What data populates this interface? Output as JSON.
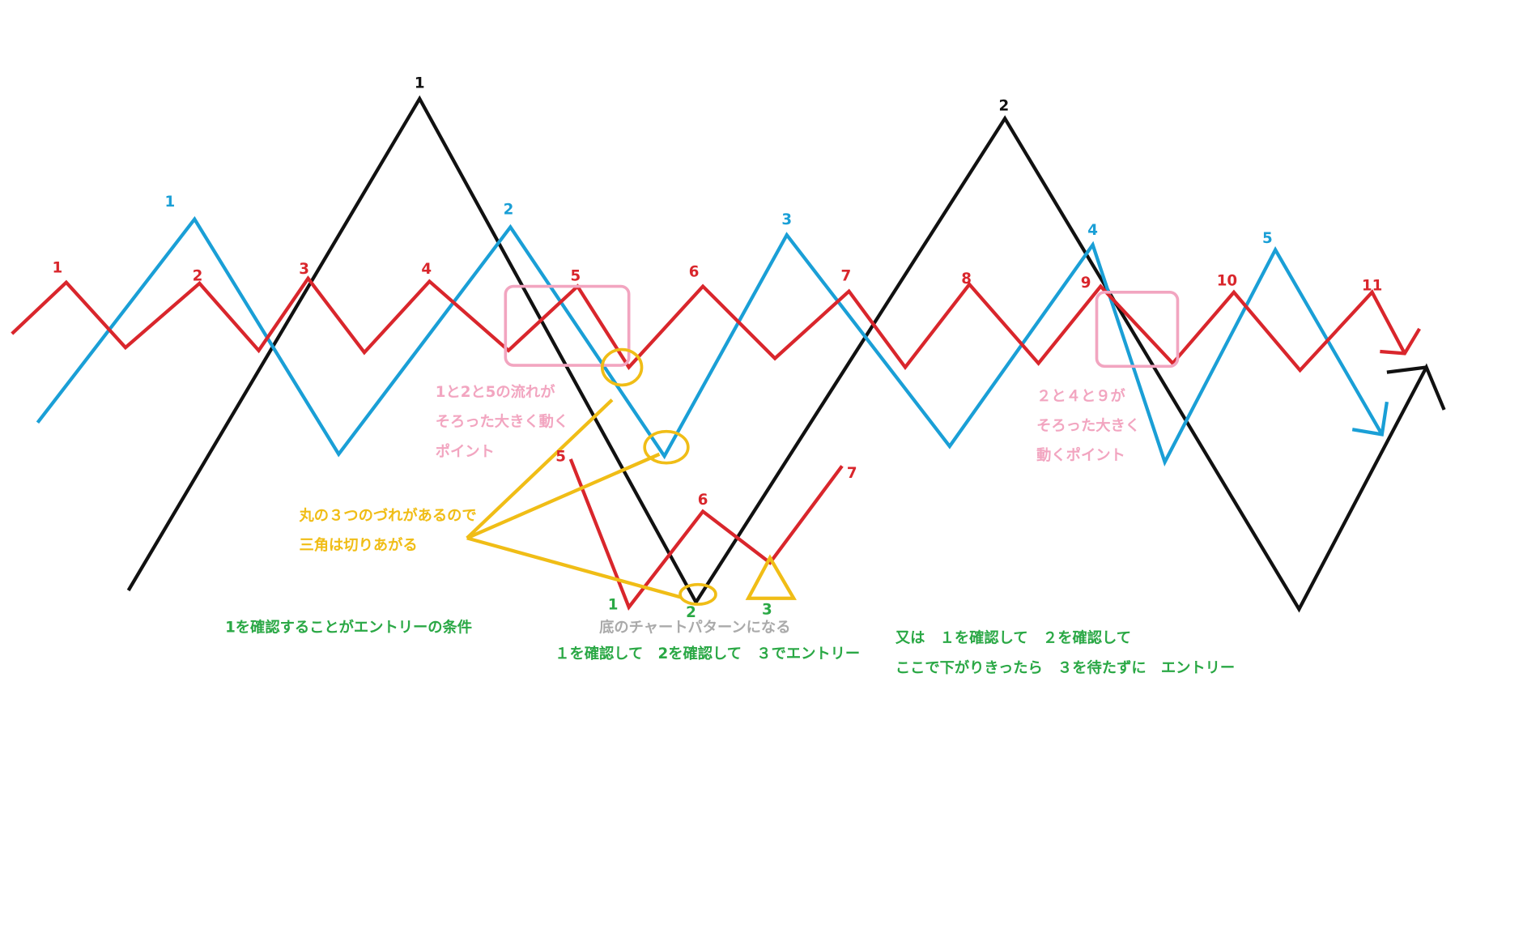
{
  "black_labels": [
    "1",
    "2"
  ],
  "blue_labels": [
    "1",
    "2",
    "3",
    "4",
    "5"
  ],
  "red_labels": [
    "1",
    "2",
    "3",
    "4",
    "5",
    "6",
    "7",
    "8",
    "9",
    "10",
    "11"
  ],
  "lower_red_labels": [
    "5",
    "6",
    "7"
  ],
  "green_labels": [
    "1",
    "2",
    "3"
  ],
  "annotations": {
    "pink_left": [
      "1と2と5の流れが",
      "そろった大きく動く",
      "ポイント"
    ],
    "pink_right": [
      "２と４と９が",
      "そろった大きく",
      "動くポイント"
    ],
    "yellow": [
      "丸の３つのづれがあるので",
      "三角は切りあがる"
    ],
    "green_condition": "1を確認することがエントリーの条件",
    "gray_pattern": "底のチャートパターンになる",
    "green_entry": "１を確認して　2を確認して　３でエントリー",
    "green_alt": [
      "又は　１を確認して　２を確認して",
      "ここで下がりきったら　３を待たずに　エントリー"
    ]
  }
}
